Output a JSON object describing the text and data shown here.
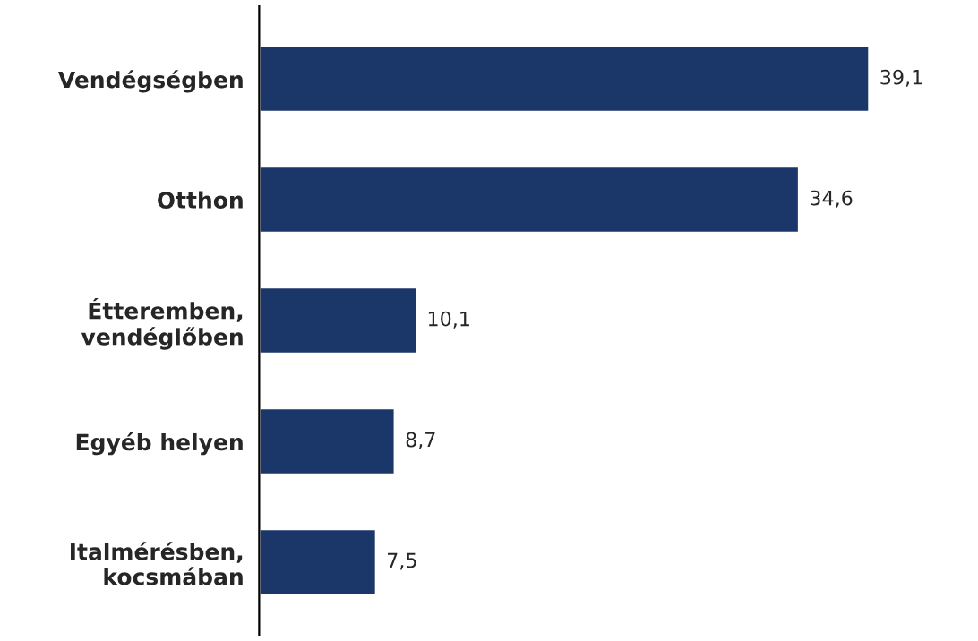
{
  "chart_data": {
    "type": "bar",
    "orientation": "horizontal",
    "categories": [
      "Vendégségben",
      "Otthon",
      "Étteremben,\nvendéglőben",
      "Egyéb helyen",
      "Italmérésben,\nkocsmában"
    ],
    "values": [
      39.1,
      34.6,
      10.1,
      8.7,
      7.5
    ],
    "value_labels": [
      "39,1",
      "34,6",
      "10,1",
      "8,7",
      "7,5"
    ],
    "color": "#1b3668",
    "grid": false,
    "legend": false,
    "tick_labels": "y"
  }
}
